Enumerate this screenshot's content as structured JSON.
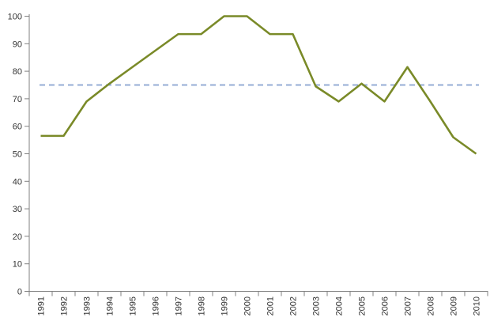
{
  "chart_data": {
    "type": "line",
    "title": "",
    "xlabel": "",
    "ylabel": "",
    "categories": [
      "1991",
      "1992",
      "1993",
      "1994",
      "1995",
      "1996",
      "1997",
      "1998",
      "1999",
      "2000",
      "2001",
      "2002",
      "2003",
      "2004",
      "2005",
      "2006",
      "2007",
      "2008",
      "2009",
      "2010"
    ],
    "series": [
      {
        "name": "main-series",
        "color": "#7A8A28",
        "values": [
          56.5,
          56.5,
          69,
          75.5,
          81.5,
          87.5,
          93.5,
          93.5,
          100,
          100,
          93.5,
          93.5,
          74.5,
          69,
          75.5,
          69,
          81.5,
          69,
          56,
          50
        ]
      }
    ],
    "reference_line": {
      "value": 75,
      "style": "dashed",
      "color": "#95ACD6"
    },
    "ylim": [
      0,
      100
    ],
    "ytick_interval": 10,
    "y_tick_labels": [
      "0",
      "10",
      "20",
      "30",
      "40",
      "50",
      "60",
      "70",
      "80",
      "90",
      "100"
    ],
    "grid": false,
    "legend": false,
    "axis_color": "#808080",
    "label_color": "#333333",
    "x_labels_rotated_degrees": 90
  }
}
